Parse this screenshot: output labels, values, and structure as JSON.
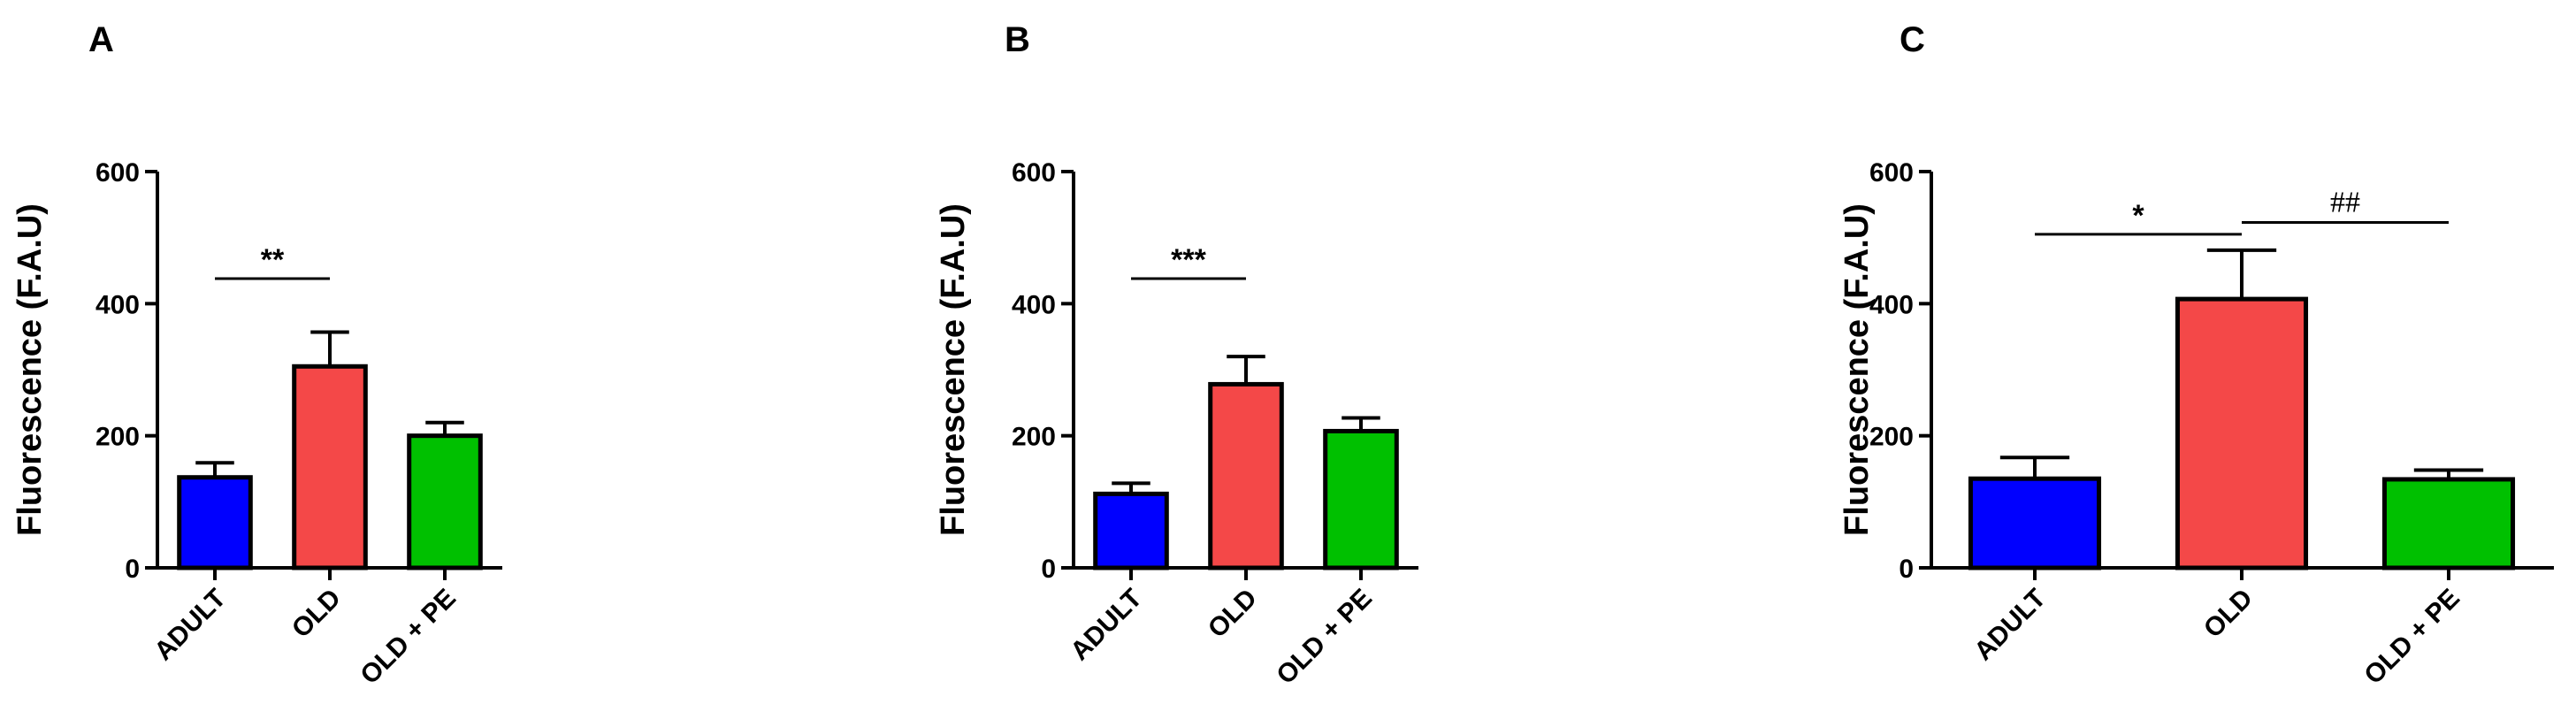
{
  "chart_data": [
    {
      "panel": "A",
      "type": "bar",
      "categories": [
        "ADULT",
        "OLD",
        "OLD + PE"
      ],
      "values": [
        137,
        305,
        200
      ],
      "errors": [
        22,
        52,
        20
      ],
      "colors": [
        "#0000ff",
        "#f44848",
        "#00c000"
      ],
      "ylabel": "Fluorescence (F.A.U)",
      "ylim": [
        0,
        600
      ],
      "yticks": [
        "0",
        "200",
        "400",
        "600"
      ],
      "significance": [
        {
          "from": 0,
          "to": 1,
          "label": "**",
          "y": 438
        }
      ]
    },
    {
      "panel": "B",
      "type": "bar",
      "categories": [
        "ADULT",
        "OLD",
        "OLD + PE"
      ],
      "values": [
        112,
        278,
        207
      ],
      "errors": [
        16,
        42,
        20
      ],
      "colors": [
        "#0000ff",
        "#f44848",
        "#00c000"
      ],
      "ylabel": "Fluorescence (F.A.U)",
      "ylim": [
        0,
        600
      ],
      "yticks": [
        "0",
        "200",
        "400",
        "600"
      ],
      "significance": [
        {
          "from": 0,
          "to": 1,
          "label": "***",
          "y": 438
        }
      ]
    },
    {
      "panel": "C",
      "type": "bar",
      "categories": [
        "ADULT",
        "OLD",
        "OLD + PE"
      ],
      "values": [
        135,
        407,
        134
      ],
      "errors": [
        32,
        74,
        14
      ],
      "colors": [
        "#0000ff",
        "#f44848",
        "#00c000"
      ],
      "ylabel": "Fluorescence (F.A.U)",
      "ylim": [
        0,
        600
      ],
      "yticks": [
        "0",
        "200",
        "400",
        "600"
      ],
      "significance": [
        {
          "from": 0,
          "to": 1,
          "label": "*",
          "y": 505
        },
        {
          "from": 1,
          "to": 2,
          "label": "##",
          "y": 523
        }
      ]
    }
  ]
}
